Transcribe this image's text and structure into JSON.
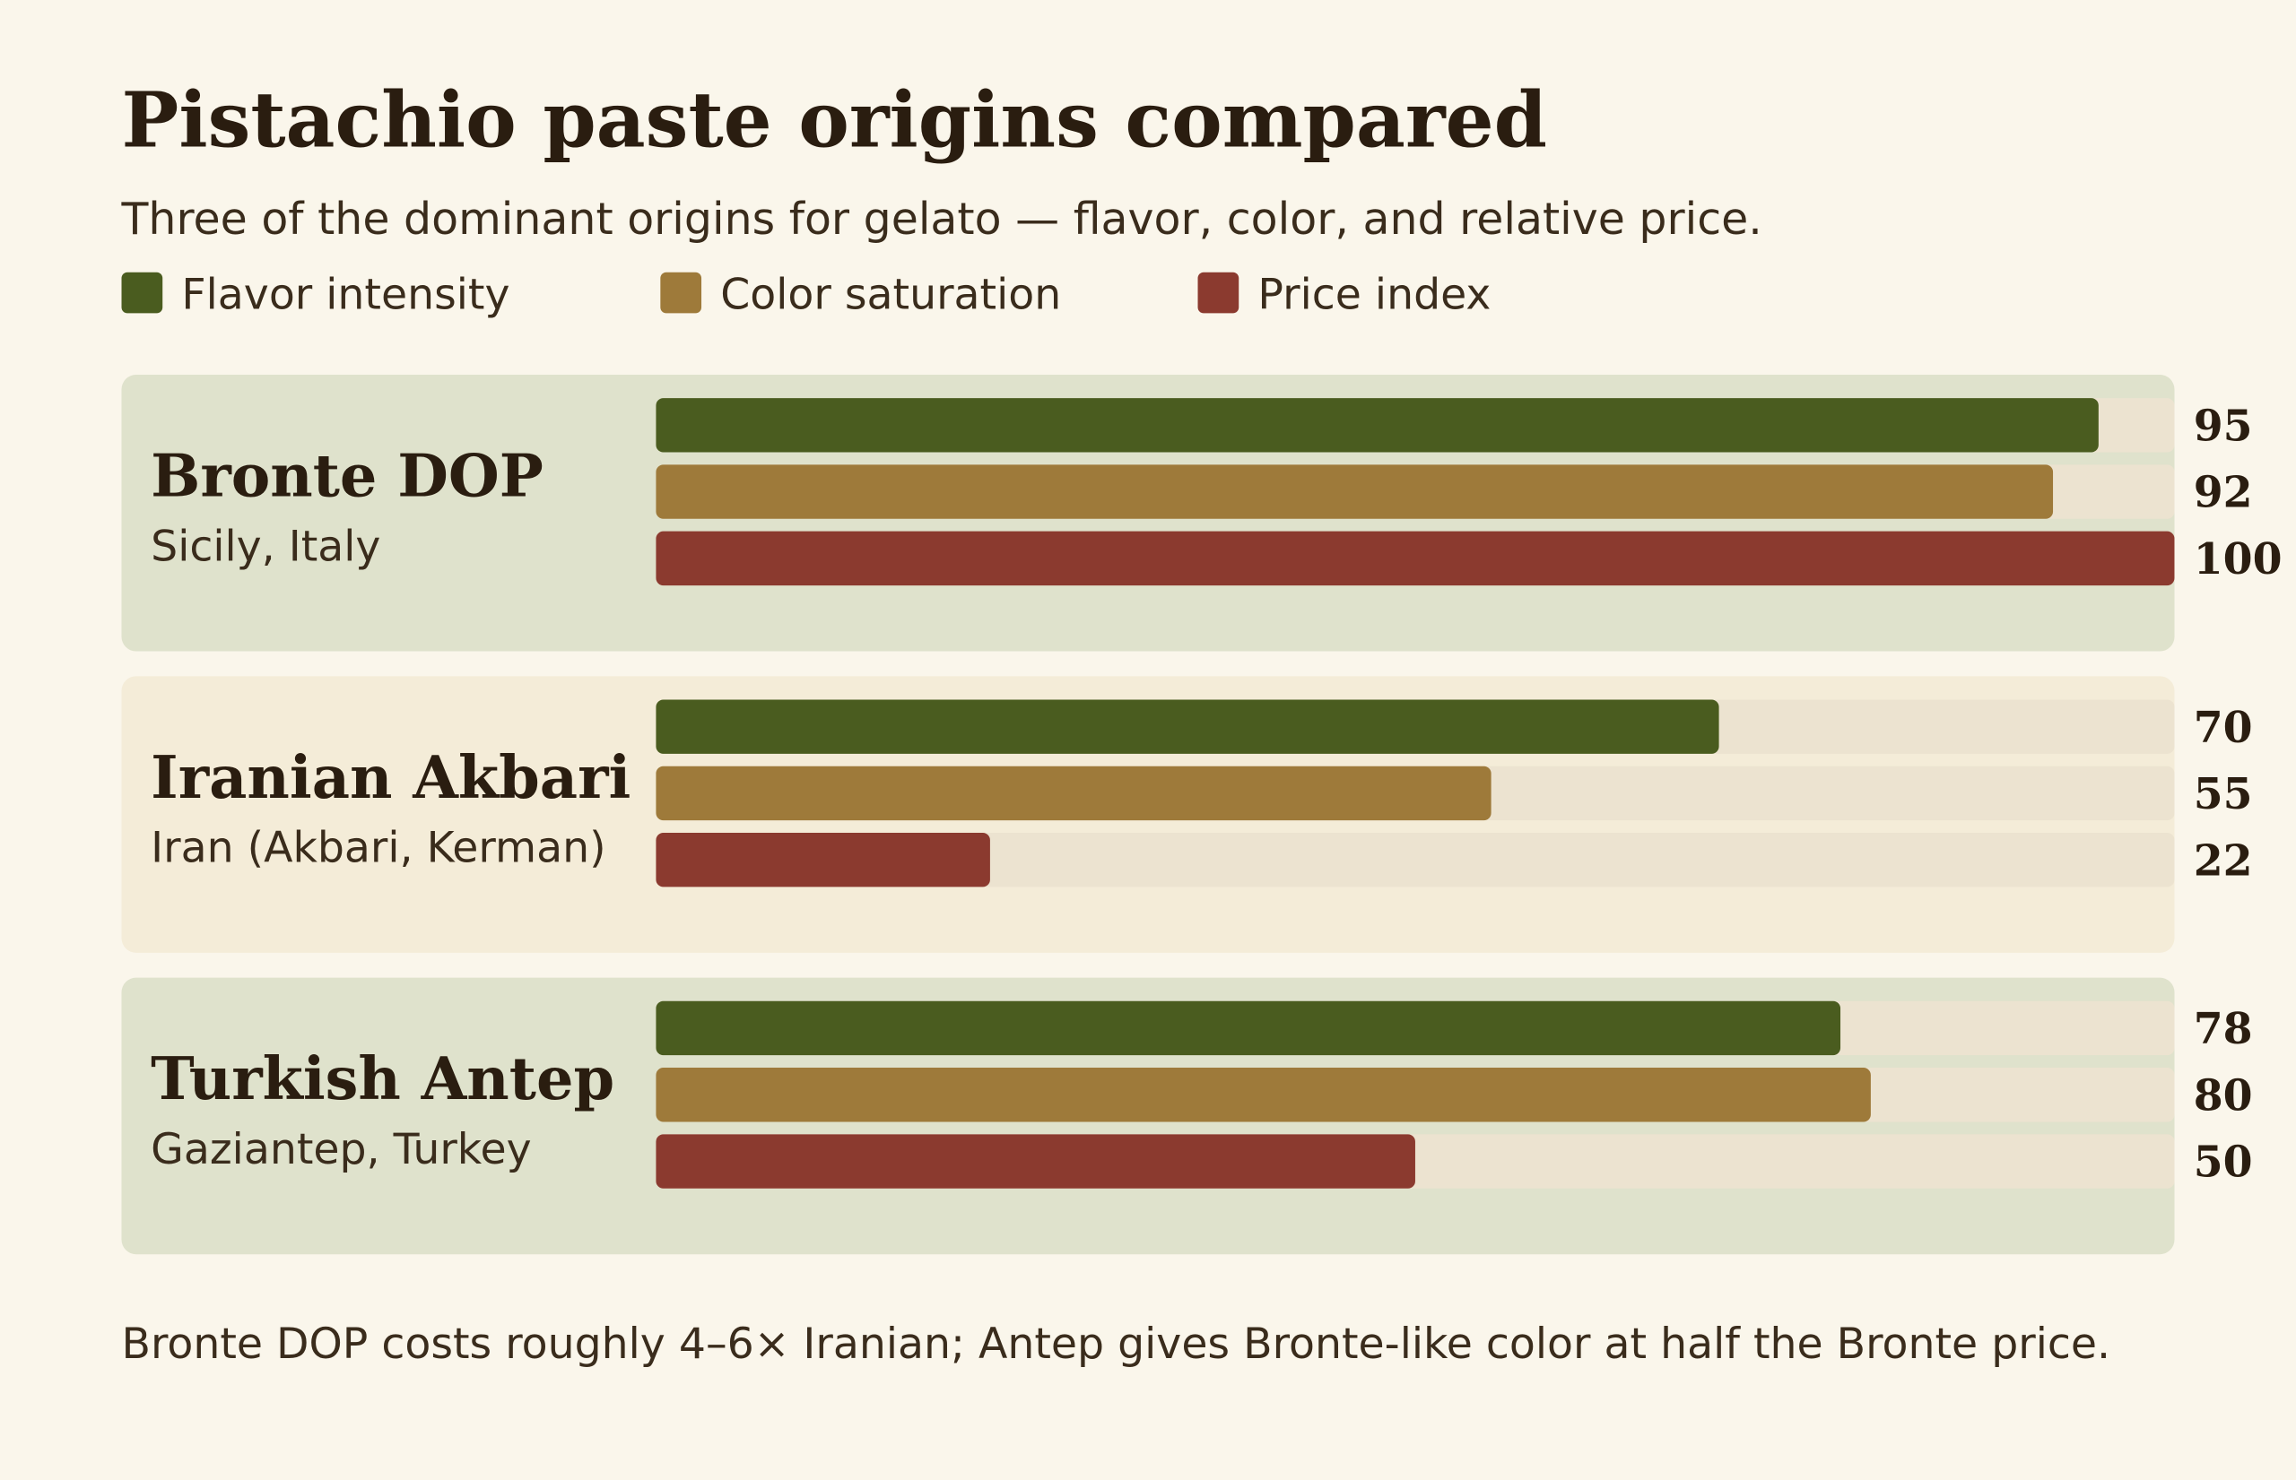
{
  "chart_data": {
    "type": "bar",
    "title": "Pistachio paste origins compared",
    "subtitle": "Three of the dominant origins for gelato — flavor, color, and relative price.",
    "categories": [
      "Bronte DOP",
      "Iranian Akbari",
      "Turkish Antep"
    ],
    "locations": [
      "Sicily, Italy",
      "Iran (Akbari, Kerman)",
      "Gaziantep, Turkey"
    ],
    "series": [
      {
        "name": "Flavor intensity",
        "color": "#4a5c1f",
        "values": [
          95,
          70,
          78
        ]
      },
      {
        "name": "Color saturation",
        "color": "#9e7a3a",
        "values": [
          92,
          55,
          80
        ]
      },
      {
        "name": "Price index",
        "color": "#8b3a2f",
        "values": [
          100,
          22,
          50
        ]
      }
    ],
    "xlim": [
      0,
      100
    ],
    "annotation": "Bronte DOP costs roughly 4–6× Iranian; Antep gives Bronte-like color at half the Bronte price."
  }
}
